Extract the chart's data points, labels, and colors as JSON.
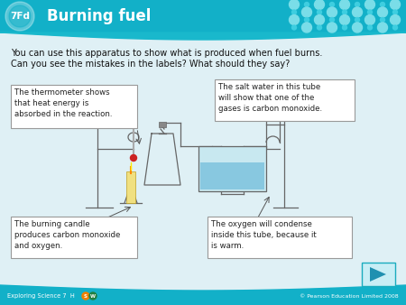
{
  "title": "Burning fuel",
  "badge": "7Fd",
  "header_color_top": "#0d9db5",
  "header_color": "#12b0c8",
  "body_bg": "#dff0f5",
  "intro_text_line1": "You can use this apparatus to show what is produced when fuel burns.",
  "intro_text_line2": "Can you see the mistakes in the labels? What should they say?",
  "label_box1_text": "The thermometer shows\nthat heat energy is\nabsorbed in the reaction.",
  "label_box2_text": "The salt water in this tube\nwill show that one of the\ngases is carbon monoxide.",
  "label_box3_text": "The burning candle\nproduces carbon monoxide\nand oxygen.",
  "label_box4_text": "The oxygen will condense\ninside this tube, because it\nis warm.",
  "footer_left1": "Exploring Science 7  H ",
  "footer_left2": "S",
  "footer_left3": "W",
  "footer_right": "© Pearson Education Limited 2008",
  "footer_color": "#12b0c8",
  "dot_color_small": "#3ecee0",
  "dot_color_large": "#7adde8",
  "wave_color": "#19b8cc"
}
